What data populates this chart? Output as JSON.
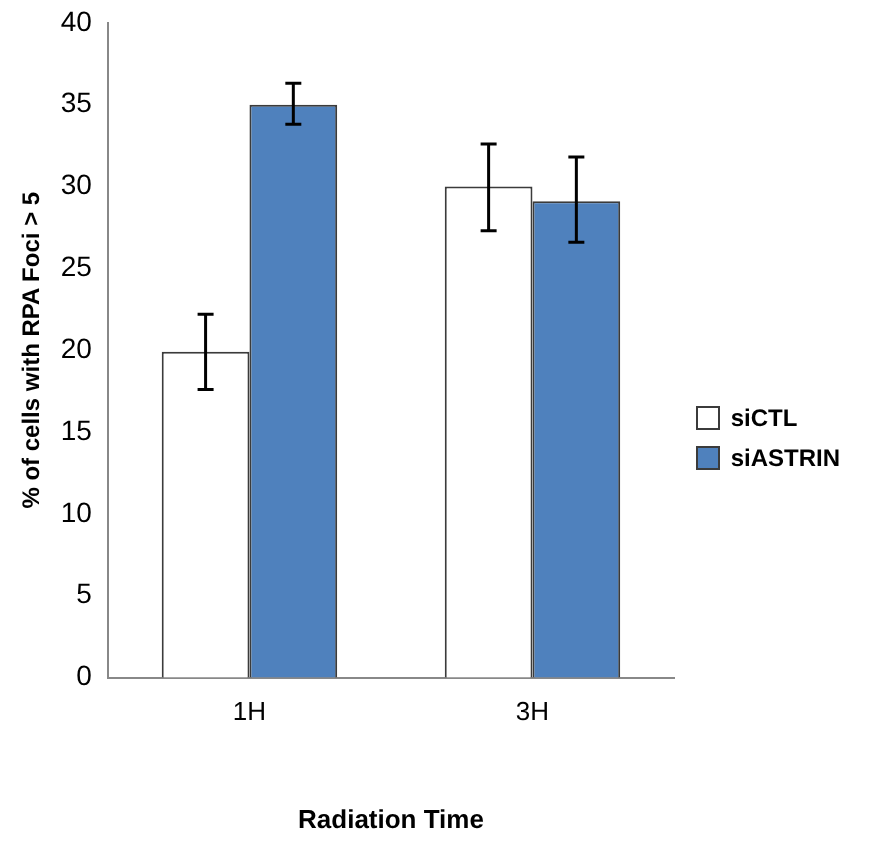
{
  "chart_data": {
    "type": "bar",
    "xlabel": "Radiation Time",
    "ylabel": "% of cells with RPA Foci > 5",
    "categories": [
      "1H",
      "3H"
    ],
    "series": [
      {
        "name": "siCTL",
        "color": "#ffffff",
        "values": [
          19.9,
          30.0
        ],
        "errors": [
          [
            17.6,
            22.2
          ],
          [
            27.3,
            32.6
          ]
        ]
      },
      {
        "name": "siASTRIN",
        "color": "#4f81bd",
        "values": [
          35.0,
          29.1
        ],
        "errors": [
          [
            33.8,
            36.3
          ],
          [
            26.6,
            31.8
          ]
        ]
      }
    ],
    "ylim": [
      0,
      40
    ],
    "yticks": [
      0,
      5,
      10,
      15,
      20,
      25,
      30,
      35,
      40
    ],
    "grid": false,
    "legend": "right"
  }
}
